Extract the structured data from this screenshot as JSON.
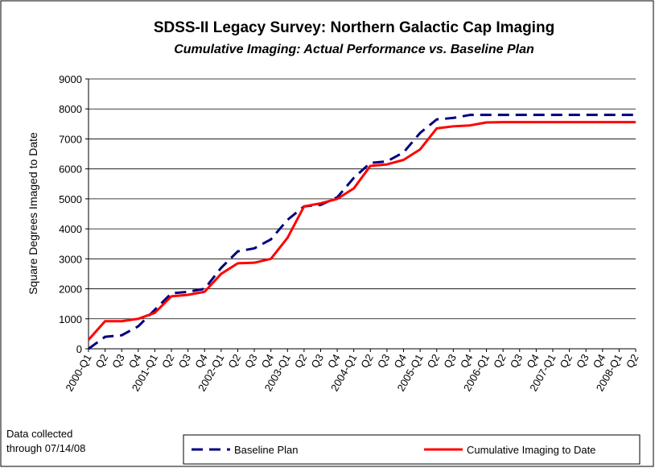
{
  "chart_data": {
    "type": "line",
    "title": "SDSS-II Legacy Survey:  Northern Galactic Cap Imaging",
    "subtitle": "Cumulative Imaging: Actual Performance vs. Baseline Plan",
    "y_label": "Square Degrees Imaged to Date",
    "note": [
      "Data collected",
      "through 07/14/08"
    ],
    "categories": [
      "2000-Q1",
      "Q2",
      "Q3",
      "Q4",
      "2001-Q1",
      "Q2",
      "Q3",
      "Q4",
      "2002-Q1",
      "Q2",
      "Q3",
      "Q4",
      "2003-Q1",
      "Q2",
      "Q3",
      "Q4",
      "2004-Q1",
      "Q2",
      "Q3",
      "Q4",
      "2005-Q1",
      "Q2",
      "Q3",
      "Q4",
      "2006-Q1",
      "Q2",
      "Q3",
      "Q4",
      "2007-Q1",
      "Q2",
      "Q3",
      "Q4",
      "2008-Q1",
      "Q2"
    ],
    "series": [
      {
        "name": "Baseline Plan",
        "color": "#000080",
        "dashed": true,
        "values": [
          0,
          400,
          450,
          750,
          1300,
          1850,
          1900,
          2000,
          2700,
          3250,
          3350,
          3650,
          4300,
          4750,
          4800,
          5050,
          5700,
          6200,
          6250,
          6550,
          7200,
          7650,
          7700,
          7800,
          7800,
          7800,
          7800,
          7800,
          7800,
          7800,
          7800,
          7800,
          7800,
          7800
        ]
      },
      {
        "name": "Cumulative Imaging to Date",
        "color": "#ff0000",
        "dashed": false,
        "values": [
          300,
          920,
          920,
          1000,
          1200,
          1750,
          1800,
          1900,
          2500,
          2850,
          2870,
          3000,
          3700,
          4750,
          4850,
          5000,
          5350,
          6100,
          6150,
          6300,
          6650,
          7350,
          7420,
          7450,
          7550,
          7560,
          7560,
          7560,
          7560,
          7560,
          7560,
          7560,
          7560,
          7560
        ]
      }
    ],
    "ylim": [
      0,
      9000
    ],
    "yticks": [
      0,
      1000,
      2000,
      3000,
      4000,
      5000,
      6000,
      7000,
      8000,
      9000
    ],
    "grid": true
  }
}
